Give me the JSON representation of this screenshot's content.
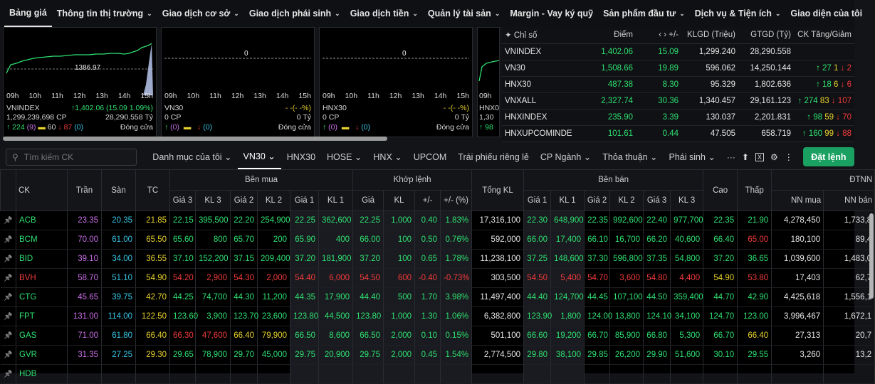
{
  "topnav": {
    "items": [
      {
        "label": "Bảng giá",
        "chev": false
      },
      {
        "label": "Thông tin thị trường",
        "chev": true
      },
      {
        "label": "Giao dịch cơ sở",
        "chev": true
      },
      {
        "label": "Giao dịch phái sinh",
        "chev": true
      },
      {
        "label": "Giao dịch tiền",
        "chev": true
      },
      {
        "label": "Quản lý tài sản",
        "chev": true
      },
      {
        "label": "Margin - Vay ký quỹ",
        "chev": false
      },
      {
        "label": "Sản phẩm đầu tư",
        "chev": true
      },
      {
        "label": "Dịch vụ & Tiện ích",
        "chev": true
      },
      {
        "label": "Giao diện của tôi",
        "chev": false
      }
    ]
  },
  "mini_charts": [
    {
      "name": "VNINDEX",
      "ref_label": "1386.97",
      "change": "↑1,402.06 (15.09 1.09%)",
      "volume": "1,299,239,698 CP",
      "value": "28,290.558 Tỷ",
      "up": "↑ 224",
      "up_ceil": "(9)",
      "flat": "60",
      "down": "↓ 87",
      "down_floor": "(0)",
      "status": "Đóng cửa"
    },
    {
      "name": "VN30",
      "ref_label": "0",
      "change": "- -(- -%)",
      "volume": "0 CP",
      "value": "0 Tỷ",
      "up": "↑",
      "up_ceil": "(0)",
      "flat": "",
      "down": "↓",
      "down_floor": "(0)",
      "status": "Đóng cửa"
    },
    {
      "name": "HNX30",
      "ref_label": "0",
      "change": "- -(- -%)",
      "volume": "0 CP",
      "value": "0 Tỷ",
      "up": "↑",
      "up_ceil": "(0)",
      "flat": "",
      "down": "↓",
      "down_floor": "(0)",
      "status": "Đóng cửa"
    },
    {
      "name": "HNX0",
      "ref_label": "",
      "change": "",
      "volume": "1,30",
      "value": "",
      "up": "↑ 98",
      "up_ceil": "",
      "flat": "",
      "down": "",
      "down_floor": "",
      "status": ""
    }
  ],
  "chart_ticks": [
    "09h",
    "10h",
    "11h",
    "12h",
    "13h",
    "14h",
    "15h"
  ],
  "index_table": {
    "headers": [
      "Chỉ số",
      "Điểm",
      "+/-",
      "KLGD (Triệu)",
      "GTGD (Tỷ)",
      "CK Tăng/Giảm"
    ],
    "rows": [
      {
        "name": "VNINDEX",
        "point": "1,402.06",
        "change": "15.09",
        "vol": "1,299.240",
        "val": "28,290.558",
        "up": "",
        "flat": "",
        "down": ""
      },
      {
        "name": "VN30",
        "point": "1,508.66",
        "change": "19.89",
        "vol": "596.062",
        "val": "14,250.144",
        "up": "↑ 27",
        "flat": "1",
        "down": "↓ 2"
      },
      {
        "name": "HNX30",
        "point": "487.38",
        "change": "8.30",
        "vol": "95.329",
        "val": "1,802.636",
        "up": "↑ 18",
        "flat": "6",
        "down": "↓ 6"
      },
      {
        "name": "VNXALL",
        "point": "2,327.74",
        "change": "30.36",
        "vol": "1,340.457",
        "val": "29,161.123",
        "up": "↑ 274",
        "flat": "83",
        "down": "↓ 107"
      },
      {
        "name": "HNXINDEX",
        "point": "235.90",
        "change": "3.39",
        "vol": "130.037",
        "val": "2,201.831",
        "up": "↑ 98",
        "flat": "59",
        "down": "↓ 70"
      },
      {
        "name": "HNXUPCOMINDE",
        "point": "101.61",
        "change": "0.44",
        "vol": "47.505",
        "val": "658.719",
        "up": "↑ 160",
        "flat": "99",
        "down": "↓ 88"
      }
    ]
  },
  "toolbar": {
    "search_placeholder": "Tìm kiếm CK",
    "tabs": [
      "Danh mục của tôi ⌄",
      "VN30 ⌄",
      "HNX30",
      "HOSE ⌄",
      "HNX ⌄",
      "UPCOM",
      "Trái phiếu riêng lẻ",
      "CP Ngành ⌄",
      "Thỏa thuận ⌄",
      "Phái sinh ⌄"
    ],
    "order_label": "Đặt lệnh"
  },
  "board": {
    "group_headers": {
      "ck": "CK",
      "tran": "Trần",
      "san": "Sàn",
      "tc": "TC",
      "buy": "Bên mua",
      "match": "Khớp lệnh",
      "total": "Tổng KL",
      "sell": "Bên bán",
      "high": "Cao",
      "low": "Thấp",
      "foreign": "ĐTNN"
    },
    "sub_headers": {
      "buy": [
        "Giá 3",
        "KL 3",
        "Giá 2",
        "KL 2",
        "Giá 1",
        "KL 1"
      ],
      "match": [
        "Giá",
        "KL",
        "+/-",
        "+/- (%)"
      ],
      "sell": [
        "Giá 1",
        "KL 1",
        "Giá 2",
        "KL 2",
        "Giá 3",
        "KL 3"
      ],
      "foreign": [
        "NN mua",
        "NN bán"
      ]
    },
    "rows": [
      {
        "sym": "ACB",
        "c": "grn",
        "tran": "23.35",
        "san": "20.35",
        "tc": "21.85",
        "b3p": "22.15",
        "b3v": "395,500",
        "b3c": "grn",
        "b2p": "22.20",
        "b2v": "254,900",
        "b2c": "grn",
        "b1p": "22.25",
        "b1v": "362,600",
        "b1c": "grn",
        "mp": "22.25",
        "mv": "1,000",
        "md": "0.40",
        "mpct": "1.83%",
        "total": "17,316,100",
        "s1p": "22.30",
        "s1v": "648,900",
        "s1c": "grn",
        "s2p": "22.35",
        "s2v": "992,600",
        "s2c": "grn",
        "s3p": "22.40",
        "s3v": "977,700",
        "s3c": "grn",
        "high": "22.35",
        "hc": "grn",
        "low": "21.90",
        "lc": "grn",
        "nnm": "4,278,450",
        "nnb": "1,733,8"
      },
      {
        "sym": "BCM",
        "c": "grn",
        "tran": "70.00",
        "san": "61.00",
        "tc": "65.50",
        "b3p": "65.60",
        "b3v": "800",
        "b3c": "grn",
        "b2p": "65.70",
        "b2v": "200",
        "b2c": "grn",
        "b1p": "65.90",
        "b1v": "400",
        "b1c": "grn",
        "mp": "66.00",
        "mv": "100",
        "md": "0.50",
        "mpct": "0.76%",
        "total": "592,000",
        "s1p": "66.00",
        "s1v": "17,400",
        "s1c": "grn",
        "s2p": "66.10",
        "s2v": "16,700",
        "s2c": "grn",
        "s3p": "66.20",
        "s3v": "40,600",
        "s3c": "grn",
        "high": "66.40",
        "hc": "grn",
        "low": "65.00",
        "lc": "red",
        "nnm": "180,100",
        "nnb": "89,4"
      },
      {
        "sym": "BID",
        "c": "grn",
        "tran": "39.10",
        "san": "34.00",
        "tc": "36.55",
        "b3p": "37.10",
        "b3v": "152,200",
        "b3c": "grn",
        "b2p": "37.15",
        "b2v": "209,400",
        "b2c": "grn",
        "b1p": "37.20",
        "b1v": "181,900",
        "b1c": "grn",
        "mp": "37.20",
        "mv": "100",
        "md": "0.65",
        "mpct": "1.78%",
        "total": "11,238,100",
        "s1p": "37.25",
        "s1v": "148,600",
        "s1c": "grn",
        "s2p": "37.30",
        "s2v": "596,800",
        "s2c": "grn",
        "s3p": "37.35",
        "s3v": "54,800",
        "s3c": "grn",
        "high": "37.20",
        "hc": "grn",
        "low": "36.65",
        "lc": "grn",
        "nnm": "1,039,600",
        "nnb": "1,483,0"
      },
      {
        "sym": "BVH",
        "c": "red",
        "tran": "58.70",
        "san": "51.10",
        "tc": "54.90",
        "b3p": "54.20",
        "b3v": "2,900",
        "b3c": "red",
        "b2p": "54.30",
        "b2v": "2,000",
        "b2c": "red",
        "b1p": "54.40",
        "b1v": "6,000",
        "b1c": "red",
        "mp": "54.50",
        "mv": "600",
        "md": "-0.40",
        "mpct": "-0.73%",
        "total": "303,500",
        "s1p": "54.50",
        "s1v": "5,400",
        "s1c": "red",
        "s2p": "54.70",
        "s2v": "3,600",
        "s2c": "red",
        "s3p": "54.80",
        "s3v": "4,400",
        "s3c": "red",
        "high": "54.90",
        "hc": "yel",
        "low": "53.80",
        "lc": "red",
        "nnm": "17,403",
        "nnb": "62,7"
      },
      {
        "sym": "CTG",
        "c": "grn",
        "tran": "45.65",
        "san": "39.75",
        "tc": "42.70",
        "b3p": "44.25",
        "b3v": "74,700",
        "b3c": "grn",
        "b2p": "44.30",
        "b2v": "11,200",
        "b2c": "grn",
        "b1p": "44.35",
        "b1v": "17,900",
        "b1c": "grn",
        "mp": "44.40",
        "mv": "500",
        "md": "1.70",
        "mpct": "3.98%",
        "total": "11,497,400",
        "s1p": "44.40",
        "s1v": "124,700",
        "s1c": "grn",
        "s2p": "44.45",
        "s2v": "107,100",
        "s2c": "grn",
        "s3p": "44.50",
        "s3v": "359,400",
        "s3c": "grn",
        "high": "44.70",
        "hc": "grn",
        "low": "42.90",
        "lc": "grn",
        "nnm": "4,425,618",
        "nnb": "1,556,1"
      },
      {
        "sym": "FPT",
        "c": "grn",
        "tran": "131.00",
        "san": "114.00",
        "tc": "122.50",
        "b3p": "123.60",
        "b3v": "3,900",
        "b3c": "grn",
        "b2p": "123.70",
        "b2v": "23,600",
        "b2c": "grn",
        "b1p": "123.80",
        "b1v": "44,500",
        "b1c": "grn",
        "mp": "123.80",
        "mv": "1,000",
        "md": "1.30",
        "mpct": "1.06%",
        "total": "6,382,800",
        "s1p": "123.90",
        "s1v": "1,800",
        "s1c": "grn",
        "s2p": "124.00",
        "s2v": "13,800",
        "s2c": "grn",
        "s3p": "124.10",
        "s3v": "34,100",
        "s3c": "grn",
        "high": "124.70",
        "hc": "grn",
        "low": "123.00",
        "lc": "grn",
        "nnm": "3,996,467",
        "nnb": "1,672,1"
      },
      {
        "sym": "GAS",
        "c": "grn",
        "tran": "71.00",
        "san": "61.80",
        "tc": "66.40",
        "b3p": "66.30",
        "b3v": "47,600",
        "b3c": "red",
        "b2p": "66.40",
        "b2v": "79,900",
        "b2c": "yel",
        "b1p": "66.50",
        "b1v": "8,600",
        "b1c": "grn",
        "mp": "66.50",
        "mv": "2,000",
        "md": "0.10",
        "mpct": "0.15%",
        "total": "501,100",
        "s1p": "66.60",
        "s1v": "19,200",
        "s1c": "grn",
        "s2p": "66.70",
        "s2v": "85,900",
        "s2c": "grn",
        "s3p": "66.80",
        "s3v": "5,300",
        "s3c": "grn",
        "high": "66.70",
        "hc": "grn",
        "low": "66.40",
        "lc": "yel",
        "nnm": "27,313",
        "nnb": "20,7"
      },
      {
        "sym": "GVR",
        "c": "grn",
        "tran": "31.35",
        "san": "27.25",
        "tc": "29.30",
        "b3p": "29.65",
        "b3v": "78,900",
        "b3c": "grn",
        "b2p": "29.70",
        "b2v": "45,000",
        "b2c": "grn",
        "b1p": "29.75",
        "b1v": "20,900",
        "b1c": "grn",
        "mp": "29.75",
        "mv": "2,000",
        "md": "0.45",
        "mpct": "1.54%",
        "total": "2,774,500",
        "s1p": "29.80",
        "s1v": "38,100",
        "s1c": "grn",
        "s2p": "29.85",
        "s2v": "26,200",
        "s2c": "grn",
        "s3p": "29.90",
        "s3v": "51,600",
        "s3c": "grn",
        "high": "30.10",
        "hc": "grn",
        "low": "29.55",
        "lc": "grn",
        "nnm": "3,260",
        "nnb": "13,2"
      },
      {
        "sym": "HDB",
        "c": "grn",
        "tran": "",
        "san": "",
        "tc": "",
        "b3p": "",
        "b3v": "",
        "b3c": "grn",
        "b2p": "",
        "b2v": "",
        "b2c": "grn",
        "b1p": "",
        "b1v": "",
        "b1c": "grn",
        "mp": "",
        "mv": "",
        "md": "",
        "mpct": "",
        "total": "",
        "s1p": "",
        "s1v": "",
        "s1c": "grn",
        "s2p": "",
        "s2v": "",
        "s2c": "grn",
        "s3p": "",
        "s3v": "",
        "s3c": "grn",
        "high": "",
        "hc": "grn",
        "low": "",
        "lc": "grn",
        "nnm": "",
        "nnb": ""
      }
    ]
  },
  "colors": {
    "up": "#2ee071",
    "down": "#f23a3a",
    "ref": "#e8d22c",
    "ceiling": "#c86ee6",
    "floor": "#37c6e6",
    "accent": "#1aa162"
  }
}
